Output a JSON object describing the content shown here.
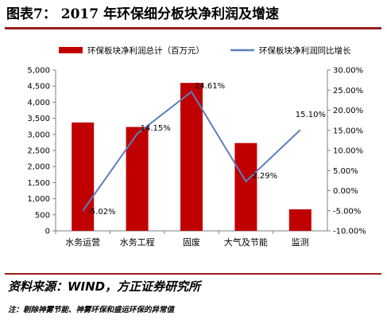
{
  "title": "图表7： 2017 年环保细分板块净利润及增速",
  "source": "资料来源：WIND，方正证券研究所",
  "note": "注：剔除神雾节能、神雾环保和盛运环保的异常值",
  "colors": {
    "bar": "#c00000",
    "line": "#5b7fbf",
    "title_rule": "#9c1d1d"
  },
  "chart_data": {
    "type": "bar+line",
    "categories": [
      "水务运营",
      "水务工程",
      "固废",
      "大气及节能",
      "监测"
    ],
    "series": [
      {
        "name": "环保板块净利润总计（百万元）",
        "type": "bar",
        "axis": "left",
        "values": [
          3370,
          3230,
          4600,
          2730,
          670
        ]
      },
      {
        "name": "环保板块净利润同比增长",
        "type": "line",
        "axis": "right",
        "values": [
          -5.02,
          14.15,
          24.61,
          2.29,
          15.1
        ],
        "labels": [
          "-5.02%",
          "14.15%",
          "24.61%",
          "2.29%",
          "15.10%"
        ]
      }
    ],
    "left_axis": {
      "min": 0,
      "max": 5000,
      "ticks": [
        "0",
        "500",
        "1,000",
        "1,500",
        "2,000",
        "2,500",
        "3,000",
        "3,500",
        "4,000",
        "4,500",
        "5,000"
      ]
    },
    "right_axis": {
      "min": -10,
      "max": 30,
      "ticks": [
        "-10.00%",
        "-5.00%",
        "0.00%",
        "5.00%",
        "10.00%",
        "15.00%",
        "20.00%",
        "25.00%",
        "30.00%"
      ]
    },
    "legend_position": "top",
    "grid": false
  }
}
